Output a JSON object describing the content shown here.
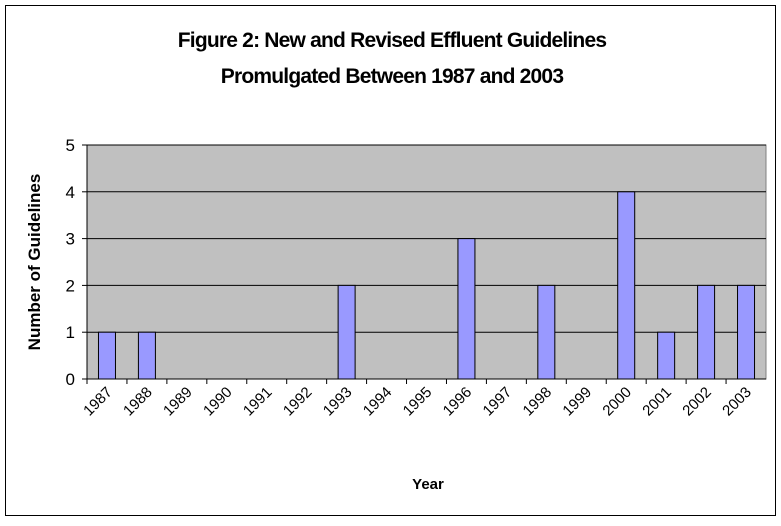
{
  "chart_data": {
    "type": "bar",
    "title": [
      "Figure 2:  New and Revised Effluent Guidelines",
      "Promulgated Between 1987 and 2003"
    ],
    "x_label": "Year",
    "y_label": "Number of Guidelines",
    "categories": [
      "1987",
      "1988",
      "1989",
      "1990",
      "1991",
      "1992",
      "1993",
      "1994",
      "1995",
      "1996",
      "1997",
      "1998",
      "1999",
      "2000",
      "2001",
      "2002",
      "2003"
    ],
    "values": [
      1,
      1,
      0,
      0,
      0,
      0,
      2,
      0,
      0,
      3,
      0,
      2,
      0,
      4,
      1,
      2,
      2
    ],
    "color": "#9999ff",
    "plot_background": "#c0c0c0",
    "ylim": [
      0,
      5
    ],
    "yticks": [
      0,
      1,
      2,
      3,
      4,
      5
    ],
    "grid": true
  }
}
